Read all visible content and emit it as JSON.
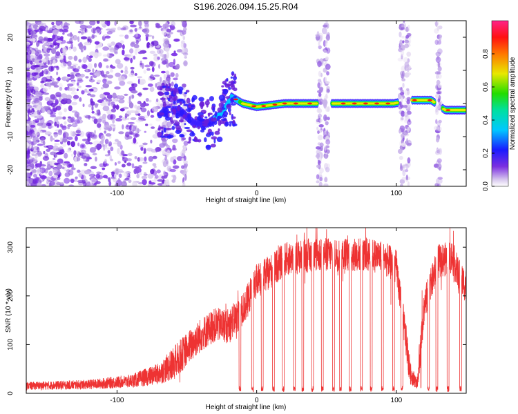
{
  "chart_data": [
    {
      "type": "heatmap",
      "title": "S196.2026.094.15.25.R04",
      "xlabel": "Height of straight line (km)",
      "ylabel": "Frequency (Hz)",
      "xlim": [
        -165,
        150
      ],
      "ylim": [
        -25,
        25
      ],
      "xticks": [
        -100,
        0,
        100
      ],
      "xtick_labels": [
        "-100",
        "0",
        "100"
      ],
      "yticks": [
        -20,
        -10,
        0,
        10,
        20
      ],
      "ytick_labels": [
        "-20",
        "-10",
        "0",
        "10",
        "20"
      ],
      "colorbar": {
        "label": "Normalized spectral amplitude",
        "range": [
          0,
          1
        ],
        "ticks": [
          0.0,
          0.2,
          0.4,
          0.6,
          0.8
        ],
        "tick_labels": [
          "0.0",
          "0.2",
          "0.4",
          "0.6",
          "0.8"
        ]
      },
      "ridge": {
        "description_points": [
          {
            "x": -55,
            "y": -2
          },
          {
            "x": -45,
            "y": -6
          },
          {
            "x": -35,
            "y": -6
          },
          {
            "x": -25,
            "y": -3
          },
          {
            "x": -18,
            "y": 2
          },
          {
            "x": -10,
            "y": 0
          },
          {
            "x": 0,
            "y": -1
          },
          {
            "x": 20,
            "y": 0
          },
          {
            "x": 44,
            "y": 0
          },
          {
            "x": 55,
            "y": 0
          },
          {
            "x": 98,
            "y": 0
          },
          {
            "x": 110,
            "y": 1
          },
          {
            "x": 125,
            "y": 1
          },
          {
            "x": 135,
            "y": -2
          },
          {
            "x": 150,
            "y": -2
          }
        ]
      },
      "vertical_streaks_x": [
        -65,
        -52,
        45,
        50,
        104,
        108,
        130
      ]
    },
    {
      "type": "line",
      "xlabel": "Height of straight line (km)",
      "ylabel": "SNR (10 * v/v)",
      "xlim": [
        -165,
        150
      ],
      "ylim": [
        0,
        340
      ],
      "xticks": [
        -100,
        0,
        100
      ],
      "xtick_labels": [
        "-100",
        "0",
        "100"
      ],
      "yticks": [
        0,
        100,
        200,
        300
      ],
      "ytick_labels": [
        "0",
        "100",
        "200",
        "300"
      ],
      "series": [
        {
          "name": "SNR",
          "color": "#ee3333",
          "envelope_x": [
            -165,
            -120,
            -90,
            -70,
            -60,
            -50,
            -40,
            -30,
            -20,
            -10,
            0,
            10,
            20,
            30,
            40,
            50,
            60,
            70,
            80,
            90,
            100,
            105,
            110,
            115,
            120,
            130,
            140,
            145,
            150
          ],
          "envelope_y": [
            15,
            18,
            25,
            40,
            60,
            90,
            120,
            140,
            140,
            170,
            230,
            250,
            275,
            280,
            285,
            285,
            285,
            285,
            285,
            280,
            260,
            150,
            40,
            20,
            180,
            270,
            280,
            240,
            220
          ],
          "dropouts_x": [
            -12,
            -3,
            4,
            12,
            19,
            27,
            33,
            40,
            47,
            55,
            60,
            67,
            75,
            82,
            90,
            98,
            104,
            117,
            123,
            129,
            137,
            146
          ]
        }
      ]
    }
  ]
}
